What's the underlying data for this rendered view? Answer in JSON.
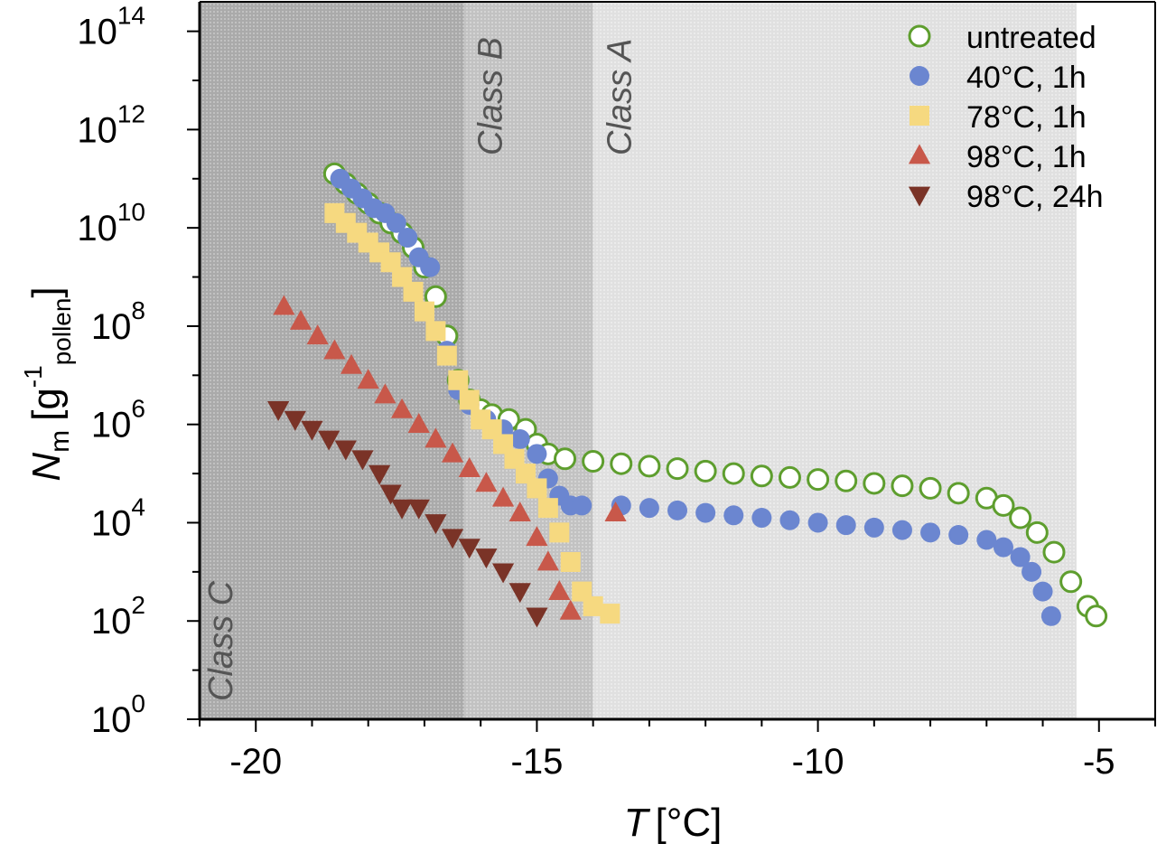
{
  "chart_data": {
    "type": "scatter",
    "xlabel": {
      "symbol": "T",
      "unit": "[°C]"
    },
    "ylabel": {
      "symbol": "N",
      "symbol_sub": "m",
      "unit_open": "[g",
      "unit_sup": "-1",
      "unit_sub": "pollen",
      "unit_close": "]"
    },
    "xlim": [
      -21,
      -4
    ],
    "ylim_log10": [
      0,
      14.6
    ],
    "y_scale": "log",
    "x_ticks": [
      {
        "value": -20,
        "label": "-20"
      },
      {
        "value": -15,
        "label": "-15"
      },
      {
        "value": -10,
        "label": "-10"
      },
      {
        "value": -5,
        "label": "-5"
      }
    ],
    "y_ticks": [
      {
        "exp": 0,
        "base": "10",
        "sup": "0"
      },
      {
        "exp": 2,
        "base": "10",
        "sup": "2"
      },
      {
        "exp": 4,
        "base": "10",
        "sup": "4"
      },
      {
        "exp": 6,
        "base": "10",
        "sup": "6"
      },
      {
        "exp": 8,
        "base": "10",
        "sup": "8"
      },
      {
        "exp": 10,
        "base": "10",
        "sup": "10"
      },
      {
        "exp": 12,
        "base": "10",
        "sup": "12"
      },
      {
        "exp": 14,
        "base": "10",
        "sup": "14"
      }
    ],
    "regions": [
      {
        "label": "Class C",
        "x_from": -21,
        "x_to": -16.3,
        "color": "#b4b4b4"
      },
      {
        "label": "Class B",
        "x_from": -16.3,
        "x_to": -14.0,
        "color": "#cbcbcb"
      },
      {
        "label": "Class A",
        "x_from": -14.0,
        "x_to": -5.4,
        "color": "#e6e6e6"
      }
    ],
    "legend_position": "top-right",
    "series": [
      {
        "name": "untreated",
        "marker": "circle-open",
        "color": "#5e9e2e",
        "points": [
          [
            -18.6,
            11.1
          ],
          [
            -18.4,
            10.9
          ],
          [
            -18.2,
            10.7
          ],
          [
            -18.0,
            10.5
          ],
          [
            -17.8,
            10.3
          ],
          [
            -17.6,
            10.1
          ],
          [
            -17.4,
            9.9
          ],
          [
            -17.2,
            9.6
          ],
          [
            -17.0,
            9.2
          ],
          [
            -16.8,
            8.6
          ],
          [
            -16.6,
            7.8
          ],
          [
            -16.4,
            6.9
          ],
          [
            -16.2,
            6.5
          ],
          [
            -16.0,
            6.3
          ],
          [
            -15.8,
            6.2
          ],
          [
            -15.5,
            6.1
          ],
          [
            -15.2,
            5.9
          ],
          [
            -15.0,
            5.6
          ],
          [
            -14.8,
            5.4
          ],
          [
            -14.5,
            5.3
          ],
          [
            -14.0,
            5.25
          ],
          [
            -13.5,
            5.2
          ],
          [
            -13.0,
            5.15
          ],
          [
            -12.5,
            5.1
          ],
          [
            -12.0,
            5.05
          ],
          [
            -11.5,
            5.0
          ],
          [
            -11.0,
            4.95
          ],
          [
            -10.5,
            4.92
          ],
          [
            -10.0,
            4.88
          ],
          [
            -9.5,
            4.85
          ],
          [
            -9.0,
            4.8
          ],
          [
            -8.5,
            4.75
          ],
          [
            -8.0,
            4.7
          ],
          [
            -7.5,
            4.6
          ],
          [
            -7.0,
            4.5
          ],
          [
            -6.7,
            4.35
          ],
          [
            -6.4,
            4.1
          ],
          [
            -6.1,
            3.8
          ],
          [
            -5.8,
            3.4
          ],
          [
            -5.5,
            2.8
          ],
          [
            -5.2,
            2.3
          ],
          [
            -5.05,
            2.1
          ]
        ]
      },
      {
        "name": "40°C, 1h",
        "marker": "circle",
        "color": "#6b86d0",
        "points": [
          [
            -18.5,
            11.0
          ],
          [
            -18.3,
            10.8
          ],
          [
            -18.1,
            10.6
          ],
          [
            -17.9,
            10.4
          ],
          [
            -17.7,
            10.3
          ],
          [
            -17.5,
            10.1
          ],
          [
            -17.3,
            9.8
          ],
          [
            -17.1,
            9.4
          ],
          [
            -16.9,
            9.2
          ],
          [
            -16.6,
            7.5
          ],
          [
            -16.4,
            6.7
          ],
          [
            -16.2,
            6.4
          ],
          [
            -15.9,
            6.1
          ],
          [
            -15.6,
            5.9
          ],
          [
            -15.3,
            5.7
          ],
          [
            -15.0,
            5.4
          ],
          [
            -14.8,
            4.9
          ],
          [
            -14.6,
            4.55
          ],
          [
            -14.4,
            4.35
          ],
          [
            -14.2,
            4.35
          ],
          [
            -13.5,
            4.35
          ],
          [
            -13.0,
            4.3
          ],
          [
            -12.5,
            4.25
          ],
          [
            -12.0,
            4.2
          ],
          [
            -11.5,
            4.15
          ],
          [
            -11.0,
            4.1
          ],
          [
            -10.5,
            4.05
          ],
          [
            -10.0,
            4.0
          ],
          [
            -9.5,
            3.95
          ],
          [
            -9.0,
            3.9
          ],
          [
            -8.5,
            3.85
          ],
          [
            -8.0,
            3.8
          ],
          [
            -7.5,
            3.75
          ],
          [
            -7.0,
            3.65
          ],
          [
            -6.7,
            3.5
          ],
          [
            -6.4,
            3.3
          ],
          [
            -6.2,
            3.0
          ],
          [
            -6.0,
            2.6
          ],
          [
            -5.85,
            2.1
          ]
        ]
      },
      {
        "name": "78°C, 1h",
        "marker": "square",
        "color": "#f6d980",
        "points": [
          [
            -18.6,
            10.3
          ],
          [
            -18.4,
            10.1
          ],
          [
            -18.2,
            9.9
          ],
          [
            -18.0,
            9.7
          ],
          [
            -17.8,
            9.5
          ],
          [
            -17.6,
            9.3
          ],
          [
            -17.4,
            9.0
          ],
          [
            -17.2,
            8.7
          ],
          [
            -17.0,
            8.3
          ],
          [
            -16.8,
            7.9
          ],
          [
            -16.6,
            7.4
          ],
          [
            -16.4,
            6.9
          ],
          [
            -16.2,
            6.5
          ],
          [
            -16.0,
            6.1
          ],
          [
            -15.8,
            5.9
          ],
          [
            -15.6,
            5.6
          ],
          [
            -15.4,
            5.3
          ],
          [
            -15.2,
            5.0
          ],
          [
            -15.0,
            4.7
          ],
          [
            -14.8,
            4.3
          ],
          [
            -14.6,
            3.8
          ],
          [
            -14.4,
            3.2
          ],
          [
            -14.2,
            2.6
          ],
          [
            -14.0,
            2.3
          ],
          [
            -13.7,
            2.15
          ]
        ]
      },
      {
        "name": "98°C, 1h",
        "marker": "triangle-up",
        "color": "#c8584a",
        "points": [
          [
            -19.5,
            8.4
          ],
          [
            -19.2,
            8.1
          ],
          [
            -18.9,
            7.8
          ],
          [
            -18.6,
            7.5
          ],
          [
            -18.3,
            7.2
          ],
          [
            -18.0,
            6.9
          ],
          [
            -17.7,
            6.6
          ],
          [
            -17.4,
            6.3
          ],
          [
            -17.1,
            6.0
          ],
          [
            -16.8,
            5.7
          ],
          [
            -16.5,
            5.4
          ],
          [
            -16.2,
            5.1
          ],
          [
            -15.9,
            4.8
          ],
          [
            -15.6,
            4.5
          ],
          [
            -15.3,
            4.2
          ],
          [
            -15.0,
            3.7
          ],
          [
            -14.8,
            3.2
          ],
          [
            -14.6,
            2.6
          ],
          [
            -14.4,
            2.2
          ],
          [
            -13.6,
            4.2
          ]
        ]
      },
      {
        "name": "98°C, 24h",
        "marker": "triangle-down",
        "color": "#7a3327",
        "points": [
          [
            -19.6,
            6.3
          ],
          [
            -19.3,
            6.1
          ],
          [
            -19.0,
            5.9
          ],
          [
            -18.7,
            5.7
          ],
          [
            -18.4,
            5.5
          ],
          [
            -18.1,
            5.3
          ],
          [
            -17.8,
            5.0
          ],
          [
            -17.6,
            4.6
          ],
          [
            -17.4,
            4.3
          ],
          [
            -17.1,
            4.3
          ],
          [
            -16.8,
            4.0
          ],
          [
            -16.5,
            3.7
          ],
          [
            -16.2,
            3.5
          ],
          [
            -15.9,
            3.3
          ],
          [
            -15.6,
            3.0
          ],
          [
            -15.3,
            2.6
          ],
          [
            -15.0,
            2.1
          ]
        ]
      }
    ]
  }
}
